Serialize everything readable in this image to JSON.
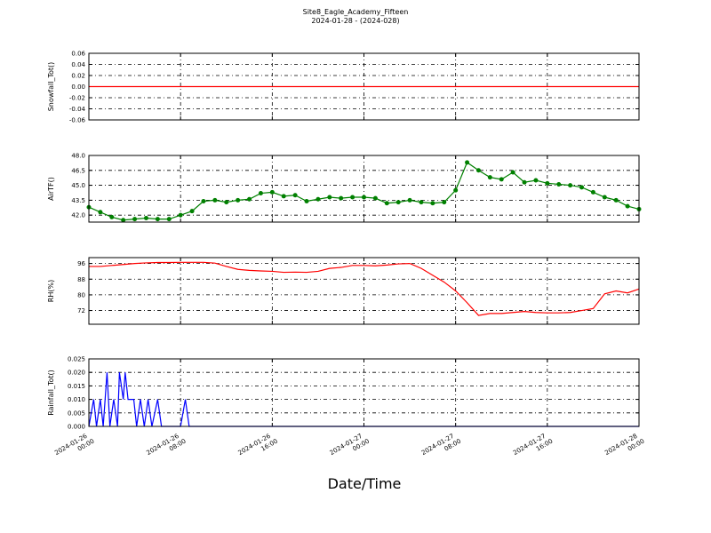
{
  "title": "Site8_Eagle_Academy_Fifteen",
  "subtitle": "2024-01-28 - (2024-028)",
  "xlabel": "Date/Time",
  "chart_data": [
    {
      "type": "line",
      "ylabel": "Snowfall_Tot()",
      "color": "#ff0000",
      "grid": true,
      "x": [
        "2024-01-26 00:00",
        "2024-01-28 00:00"
      ],
      "values": [
        0,
        0
      ],
      "xlim": [
        "2024-01-26 00:00",
        "2024-01-28 00:00"
      ],
      "xticks": [
        "2024-01-26 00:00",
        "2024-01-26 08:00",
        "2024-01-26 16:00",
        "2024-01-27 00:00",
        "2024-01-27 08:00",
        "2024-01-27 16:00",
        "2024-01-28 00:00"
      ],
      "ylim": [
        -0.06,
        0.06
      ],
      "yticks": [
        0.06,
        0.04,
        0.02,
        {
          "value": 0,
          "label": "0.00"
        },
        -0.02,
        -0.04,
        -0.06
      ]
    },
    {
      "type": "line",
      "ylabel": "AirTF()",
      "color": "#008000",
      "marker": true,
      "grid": true,
      "x": [
        "2024-01-26 00:00",
        "2024-01-26 01:00",
        "2024-01-26 02:00",
        "2024-01-26 03:00",
        "2024-01-26 04:00",
        "2024-01-26 05:00",
        "2024-01-26 06:00",
        "2024-01-26 07:00",
        "2024-01-26 08:00",
        "2024-01-26 09:00",
        "2024-01-26 10:00",
        "2024-01-26 11:00",
        "2024-01-26 12:00",
        "2024-01-26 13:00",
        "2024-01-26 14:00",
        "2024-01-26 15:00",
        "2024-01-26 16:00",
        "2024-01-26 17:00",
        "2024-01-26 18:00",
        "2024-01-26 19:00",
        "2024-01-26 20:00",
        "2024-01-26 21:00",
        "2024-01-26 22:00",
        "2024-01-26 23:00",
        "2024-01-27 00:00",
        "2024-01-27 01:00",
        "2024-01-27 02:00",
        "2024-01-27 03:00",
        "2024-01-27 04:00",
        "2024-01-27 05:00",
        "2024-01-27 06:00",
        "2024-01-27 07:00",
        "2024-01-27 08:00",
        "2024-01-27 09:00",
        "2024-01-27 10:00",
        "2024-01-27 11:00",
        "2024-01-27 12:00",
        "2024-01-27 13:00",
        "2024-01-27 14:00",
        "2024-01-27 15:00",
        "2024-01-27 16:00",
        "2024-01-27 17:00",
        "2024-01-27 18:00",
        "2024-01-27 19:00",
        "2024-01-27 20:00",
        "2024-01-27 21:00",
        "2024-01-27 22:00",
        "2024-01-27 23:00",
        "2024-01-28 00:00"
      ],
      "values": [
        42.8,
        42.3,
        41.8,
        41.5,
        41.6,
        41.7,
        41.6,
        41.6,
        42.0,
        42.4,
        43.4,
        43.5,
        43.3,
        43.5,
        43.6,
        44.2,
        44.3,
        43.9,
        44.0,
        43.4,
        43.6,
        43.8,
        43.7,
        43.8,
        43.8,
        43.7,
        43.2,
        43.3,
        43.5,
        43.3,
        43.2,
        43.3,
        44.5,
        47.3,
        46.5,
        45.8,
        45.6,
        46.3,
        45.3,
        45.5,
        45.2,
        45.1,
        45.0,
        44.8,
        44.3,
        43.8,
        43.5,
        42.9,
        42.6
      ],
      "xlim": [
        "2024-01-26 00:00",
        "2024-01-28 00:00"
      ],
      "xticks": [
        "2024-01-26 00:00",
        "2024-01-26 08:00",
        "2024-01-26 16:00",
        "2024-01-27 00:00",
        "2024-01-27 08:00",
        "2024-01-27 16:00",
        "2024-01-28 00:00"
      ],
      "ylim": [
        41.3,
        48
      ],
      "yticks": [
        {
          "value": 48,
          "label": "48.0"
        },
        46.5,
        {
          "value": 45,
          "label": "45.0"
        },
        43.5,
        {
          "value": 42,
          "label": "42.0"
        }
      ]
    },
    {
      "type": "line",
      "ylabel": "RH(%)",
      "color": "#ff0000",
      "grid": true,
      "x": [
        "2024-01-26 00:00",
        "2024-01-26 01:00",
        "2024-01-26 02:00",
        "2024-01-26 03:00",
        "2024-01-26 04:00",
        "2024-01-26 05:00",
        "2024-01-26 06:00",
        "2024-01-26 07:00",
        "2024-01-26 08:00",
        "2024-01-26 09:00",
        "2024-01-26 10:00",
        "2024-01-26 11:00",
        "2024-01-26 12:00",
        "2024-01-26 13:00",
        "2024-01-26 14:00",
        "2024-01-26 15:00",
        "2024-01-26 16:00",
        "2024-01-26 17:00",
        "2024-01-26 18:00",
        "2024-01-26 19:00",
        "2024-01-26 20:00",
        "2024-01-26 21:00",
        "2024-01-26 22:00",
        "2024-01-26 23:00",
        "2024-01-27 00:00",
        "2024-01-27 01:00",
        "2024-01-27 02:00",
        "2024-01-27 03:00",
        "2024-01-27 04:00",
        "2024-01-27 05:00",
        "2024-01-27 06:00",
        "2024-01-27 07:00",
        "2024-01-27 08:00",
        "2024-01-27 09:00",
        "2024-01-27 10:00",
        "2024-01-27 11:00",
        "2024-01-27 12:00",
        "2024-01-27 13:00",
        "2024-01-27 14:00",
        "2024-01-27 15:00",
        "2024-01-27 16:00",
        "2024-01-27 17:00",
        "2024-01-27 18:00",
        "2024-01-27 19:00",
        "2024-01-27 20:00",
        "2024-01-27 21:00",
        "2024-01-27 22:00",
        "2024-01-27 23:00",
        "2024-01-28 00:00"
      ],
      "values": [
        94.5,
        94.5,
        95,
        95.5,
        96,
        96.3,
        96.5,
        96.5,
        96.6,
        96.6,
        96.6,
        96.2,
        94.5,
        93,
        92.5,
        92.2,
        92,
        91.5,
        91.6,
        91.5,
        92,
        93.5,
        94,
        95,
        95,
        94.8,
        95.2,
        95.8,
        96,
        93.5,
        90,
        86.5,
        82,
        76,
        69.5,
        70.5,
        70.5,
        71,
        71.5,
        71,
        70.8,
        70.8,
        71,
        72,
        73,
        80.5,
        82,
        81,
        83
      ],
      "xlim": [
        "2024-01-26 00:00",
        "2024-01-28 00:00"
      ],
      "xticks": [
        "2024-01-26 00:00",
        "2024-01-26 08:00",
        "2024-01-26 16:00",
        "2024-01-27 00:00",
        "2024-01-27 08:00",
        "2024-01-27 16:00",
        "2024-01-28 00:00"
      ],
      "ylim": [
        65,
        99
      ],
      "yticks": [
        96,
        88,
        80,
        72
      ]
    },
    {
      "type": "line",
      "ylabel": "Rainfall_Tot()",
      "color": "#0000ff",
      "grid": true,
      "x": [
        "2024-01-26 00:00",
        "2024-01-26 00:25",
        "2024-01-26 00:40",
        "2024-01-26 01:00",
        "2024-01-26 01:15",
        "2024-01-26 01:35",
        "2024-01-26 01:50",
        "2024-01-26 02:10",
        "2024-01-26 02:30",
        "2024-01-26 02:40",
        "2024-01-26 03:00",
        "2024-01-26 03:10",
        "2024-01-26 03:25",
        "2024-01-26 03:55",
        "2024-01-26 04:10",
        "2024-01-26 04:30",
        "2024-01-26 04:50",
        "2024-01-26 05:10",
        "2024-01-26 05:30",
        "2024-01-26 06:00",
        "2024-01-26 06:20",
        "2024-01-26 08:00",
        "2024-01-26 08:25",
        "2024-01-26 08:45",
        "2024-01-28 00:00"
      ],
      "values": [
        0,
        0.01,
        0,
        0.01,
        0,
        0.02,
        0,
        0.01,
        0,
        0.02,
        0.01,
        0.02,
        0.01,
        0.01,
        0,
        0.01,
        0,
        0.01,
        0,
        0.01,
        0,
        0,
        0.01,
        0,
        0
      ],
      "xlim": [
        "2024-01-26 00:00",
        "2024-01-28 00:00"
      ],
      "xticks": [
        "2024-01-26 00:00",
        "2024-01-26 08:00",
        "2024-01-26 16:00",
        "2024-01-27 00:00",
        "2024-01-27 08:00",
        "2024-01-27 16:00",
        "2024-01-28 00:00"
      ],
      "ylim": [
        0,
        0.025
      ],
      "yticks": [
        0.025,
        {
          "value": 0.02,
          "label": "0.020"
        },
        0.015,
        {
          "value": 0.01,
          "label": "0.010"
        },
        0.005,
        {
          "value": 0,
          "label": "0.000"
        }
      ]
    }
  ]
}
